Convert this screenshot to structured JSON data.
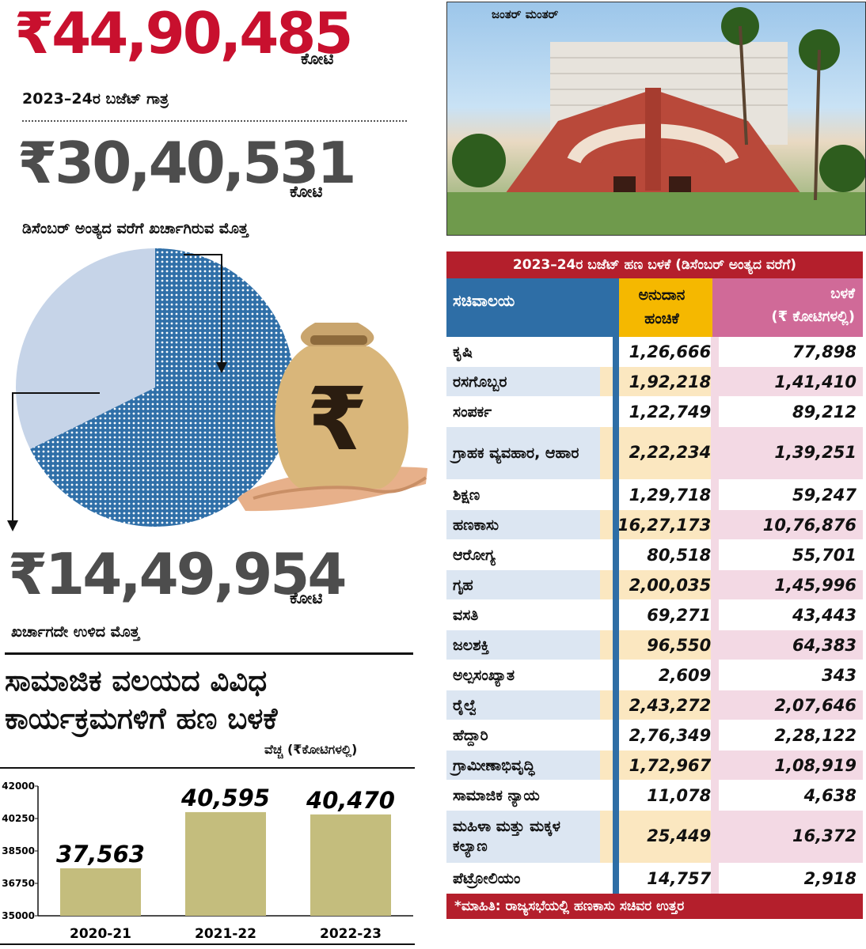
{
  "header": {
    "budget_amount": "₹44,90,485",
    "budget_unit": "ಕೋಟಿ",
    "budget_caption": "2023–24ರ ಬಜೆಟ್ ಗಾತ್ರ",
    "spent_amount": "₹30,40,531",
    "spent_unit": "ಕೋಟಿ",
    "spent_caption": "ಡಿಸೆಂಬರ್ ಅಂತ್ಯದ ವರೆಗೆ ಖರ್ಚಾಗಿರುವ ಮೊತ್ತ",
    "remaining_amount": "₹14,49,954",
    "remaining_unit": "ಕೋಟಿ",
    "remaining_caption": "ಖರ್ಚಾಗದೇ ಉಳಿದ ಮೊತ್ತ"
  },
  "photo": {
    "label": "ಜಂತರ್ ಮಂತರ್"
  },
  "pie": {
    "spent_fraction": 0.677,
    "colors": {
      "spent": "#2f6fa8",
      "remaining": "#c6d4e8"
    }
  },
  "table": {
    "title": "2023–24ರ ಬಜೆಟ್ ಹಣ ಬಳಕೆ (ಡಿಸೆಂಬರ್ ಅಂತ್ಯದ ವರೆಗೆ)",
    "col_ministry": "ಸಚಿವಾಲಯ",
    "col_grant_1": "ಅನುದಾನ",
    "col_grant_2": "ಹಂಚಿಕೆ",
    "col_used_1": "ಬಳಕೆ",
    "col_used_2": "(₹ ಕೋಟಿಗಳಲ್ಲಿ)",
    "rows": [
      {
        "name": "ಕೃಷಿ",
        "grant": "1,26,666",
        "used": "77,898"
      },
      {
        "name": "ರಸಗೊಬ್ಬರ",
        "grant": "1,92,218",
        "used": "1,41,410"
      },
      {
        "name": "ಸಂಪರ್ಕ",
        "grant": "1,22,749",
        "used": "89,212"
      },
      {
        "name": "ಗ್ರಾಹಕ ವ್ಯವಹಾರ, ಆಹಾರ",
        "grant": "2,22,234",
        "used": "1,39,251"
      },
      {
        "name": "ಶಿಕ್ಷಣ",
        "grant": "1,29,718",
        "used": "59,247"
      },
      {
        "name": "ಹಣಕಾಸು",
        "grant": "16,27,173",
        "used": "10,76,876"
      },
      {
        "name": "ಆರೋಗ್ಯ",
        "grant": "80,518",
        "used": "55,701"
      },
      {
        "name": "ಗೃಹ",
        "grant": "2,00,035",
        "used": "1,45,996"
      },
      {
        "name": "ವಸತಿ",
        "grant": "69,271",
        "used": "43,443"
      },
      {
        "name": "ಜಲಶಕ್ತಿ",
        "grant": "96,550",
        "used": "64,383"
      },
      {
        "name": "ಅಲ್ಪಸಂಖ್ಯಾತ",
        "grant": "2,609",
        "used": "343"
      },
      {
        "name": "ರೈಲ್ವೆ",
        "grant": "2,43,272",
        "used": "2,07,646"
      },
      {
        "name": "ಹೆದ್ದಾರಿ",
        "grant": "2,76,349",
        "used": "2,28,122"
      },
      {
        "name": "ಗ್ರಾಮೀಣಾಭಿವೃದ್ಧಿ",
        "grant": "1,72,967",
        "used": "1,08,919"
      },
      {
        "name": "ಸಾಮಾಜಿಕ ನ್ಯಾಯ",
        "grant": "11,078",
        "used": "4,638"
      },
      {
        "name": "ಮಹಿಳಾ ಮತ್ತು ಮಕ್ಕಳ ಕಲ್ಯಾಣ",
        "grant": "25,449",
        "used": "16,372"
      },
      {
        "name": "ಪೆಟ್ರೋಲಿಯಂ",
        "grant": "14,757",
        "used": "2,918"
      }
    ],
    "source": "*ಮಾಹಿತಿ: ರಾಜ್ಯಸಭೆಯಲ್ಲಿ ಹಣಕಾಸು ಸಚಿವರ ಉತ್ತರ"
  },
  "social": {
    "title_1": "ಸಾಮಾಜಿಕ ವಲಯದ ವಿವಿಧ",
    "title_2": "ಕಾರ್ಯಕ್ರಮಗಳಿಗೆ ಹಣ ಬಳಕೆ",
    "unit": "ವೆಚ್ಚ (₹ಕೋಟಿಗಳಲ್ಲಿ)"
  },
  "chart_data": {
    "type": "bar",
    "categories": [
      "2020-21",
      "2021-22",
      "2022-23"
    ],
    "values": [
      37563,
      40595,
      40470
    ],
    "value_labels": [
      "37,563",
      "40,595",
      "40,470"
    ],
    "ylim": [
      35000,
      42000
    ],
    "yticks": [
      "42000",
      "40250",
      "38500",
      "36750",
      "35000"
    ],
    "ytick_values": [
      42000,
      40250,
      38500,
      36750,
      35000
    ],
    "bar_color": "#c4bd7d",
    "grid": false
  }
}
